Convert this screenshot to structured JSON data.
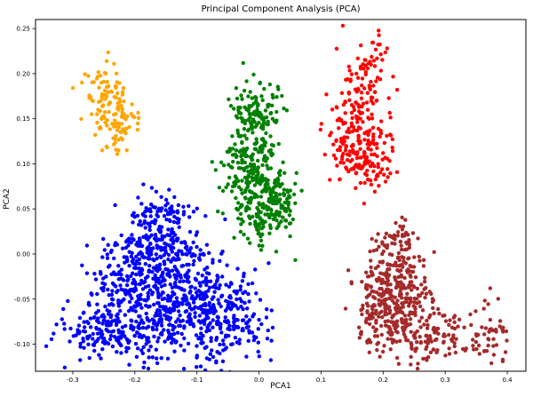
{
  "figure": {
    "title": "Principal Component Analysis (PCA)",
    "xlabel": "PCA1",
    "ylabel": "PCA2"
  },
  "chart_data": {
    "type": "scatter",
    "title": "Principal Component Analysis (PCA)",
    "xlabel": "PCA1",
    "ylabel": "PCA2",
    "xlim": [
      -0.36,
      0.43
    ],
    "ylim": [
      -0.13,
      0.26
    ],
    "x_ticks": [
      -0.3,
      -0.2,
      -0.1,
      0.0,
      0.1,
      0.2,
      0.3,
      0.4
    ],
    "x_tick_labels": [
      "-0.3",
      "-0.2",
      "-0.1",
      "0.0",
      "0.1",
      "0.2",
      "0.3",
      "0.4"
    ],
    "y_ticks": [
      -0.1,
      -0.05,
      0.0,
      0.05,
      0.1,
      0.15,
      0.2,
      0.25
    ],
    "y_tick_labels": [
      "-0.10",
      "-0.05",
      "0.00",
      "0.05",
      "0.10",
      "0.15",
      "0.20",
      "0.25"
    ],
    "grid": false,
    "legend": "none",
    "marker_radius_px": 2.2,
    "background_color": "#ffffff",
    "axes_color": "#000000",
    "clusters": [
      {
        "name": "cluster-blue",
        "color": "#0000ff",
        "approx_center": [
          -0.14,
          -0.04
        ],
        "approx_count": 1130,
        "components": [
          {
            "cx": -0.2,
            "cy": -0.05,
            "sx": 0.05,
            "sy": 0.03,
            "n": 300
          },
          {
            "cx": -0.12,
            "cy": -0.06,
            "sx": 0.05,
            "sy": 0.03,
            "n": 300
          },
          {
            "cx": -0.16,
            "cy": 0.0,
            "sx": 0.04,
            "sy": 0.025,
            "n": 200
          },
          {
            "cx": -0.05,
            "cy": -0.07,
            "sx": 0.035,
            "sy": 0.025,
            "n": 150
          },
          {
            "cx": -0.25,
            "cy": -0.09,
            "sx": 0.04,
            "sy": 0.015,
            "n": 100
          },
          {
            "cx": -0.16,
            "cy": 0.04,
            "sx": 0.025,
            "sy": 0.015,
            "n": 80
          }
        ]
      },
      {
        "name": "cluster-green",
        "color": "#008000",
        "approx_center": [
          -0.005,
          0.09
        ],
        "approx_count": 500,
        "components": [
          {
            "cx": -0.005,
            "cy": 0.155,
            "sx": 0.018,
            "sy": 0.02,
            "n": 120
          },
          {
            "cx": -0.015,
            "cy": 0.1,
            "sx": 0.022,
            "sy": 0.025,
            "n": 160
          },
          {
            "cx": 0.005,
            "cy": 0.055,
            "sx": 0.025,
            "sy": 0.022,
            "n": 160
          },
          {
            "cx": 0.03,
            "cy": 0.06,
            "sx": 0.012,
            "sy": 0.015,
            "n": 60
          }
        ]
      },
      {
        "name": "cluster-red",
        "color": "#ff0000",
        "approx_center": [
          0.165,
          0.14
        ],
        "approx_count": 295,
        "components": [
          {
            "cx": 0.165,
            "cy": 0.17,
            "sx": 0.022,
            "sy": 0.028,
            "n": 130
          },
          {
            "cx": 0.15,
            "cy": 0.115,
            "sx": 0.02,
            "sy": 0.02,
            "n": 90
          },
          {
            "cx": 0.185,
            "cy": 0.1,
            "sx": 0.015,
            "sy": 0.02,
            "n": 60
          },
          {
            "cx": 0.19,
            "cy": 0.225,
            "sx": 0.008,
            "sy": 0.008,
            "n": 15
          }
        ]
      },
      {
        "name": "cluster-orange",
        "color": "#ffa500",
        "approx_center": [
          -0.24,
          0.163
        ],
        "approx_count": 140,
        "components": [
          {
            "cx": -0.245,
            "cy": 0.175,
            "sx": 0.018,
            "sy": 0.018,
            "n": 80
          },
          {
            "cx": -0.23,
            "cy": 0.145,
            "sx": 0.018,
            "sy": 0.015,
            "n": 60
          }
        ]
      },
      {
        "name": "cluster-brown",
        "color": "#a52a2a",
        "approx_center": [
          0.24,
          -0.05
        ],
        "approx_count": 570,
        "components": [
          {
            "cx": 0.22,
            "cy": -0.03,
            "sx": 0.025,
            "sy": 0.025,
            "n": 170
          },
          {
            "cx": 0.23,
            "cy": -0.075,
            "sx": 0.035,
            "sy": 0.02,
            "n": 170
          },
          {
            "cx": 0.19,
            "cy": -0.05,
            "sx": 0.02,
            "sy": 0.02,
            "n": 80
          },
          {
            "cx": 0.3,
            "cy": -0.095,
            "sx": 0.035,
            "sy": 0.012,
            "n": 70
          },
          {
            "cx": 0.375,
            "cy": -0.09,
            "sx": 0.015,
            "sy": 0.02,
            "n": 40
          },
          {
            "cx": 0.22,
            "cy": 0.015,
            "sx": 0.015,
            "sy": 0.012,
            "n": 40
          }
        ]
      }
    ]
  }
}
